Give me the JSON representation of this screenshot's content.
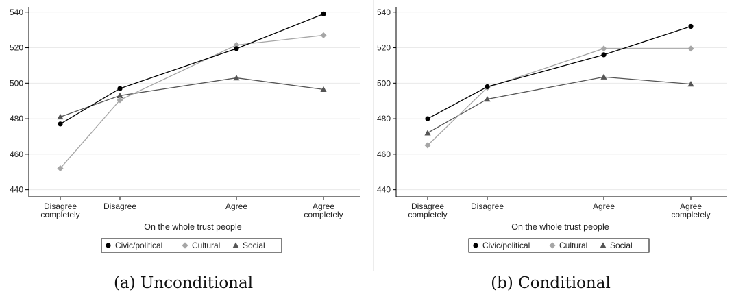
{
  "chart_data": [
    {
      "type": "line",
      "caption": "(a) Unconditional",
      "xlabel": "On the whole trust people",
      "ylabel": "",
      "categories": [
        [
          "Disagree",
          "completely"
        ],
        [
          "Disagree"
        ],
        [
          "Agree"
        ],
        [
          "Agree",
          "completely"
        ]
      ],
      "ylim": [
        436,
        543
      ],
      "yticks": [
        440,
        460,
        480,
        500,
        520,
        540
      ],
      "grid": true,
      "legend_position": "bottom",
      "series": [
        {
          "name": "Civic/political",
          "values": [
            477,
            497,
            519.5,
            539
          ],
          "color": "#000000",
          "marker": "circle"
        },
        {
          "name": "Cultural",
          "values": [
            452,
            490.5,
            521.5,
            527
          ],
          "color": "#a6a6a6",
          "marker": "diamond"
        },
        {
          "name": "Social",
          "values": [
            481,
            493,
            503,
            496.5
          ],
          "color": "#555555",
          "marker": "triangle"
        }
      ]
    },
    {
      "type": "line",
      "caption": "(b) Conditional",
      "xlabel": "On the whole trust people",
      "ylabel": "",
      "categories": [
        [
          "Disagree",
          "completely"
        ],
        [
          "Disagree"
        ],
        [
          "Agree"
        ],
        [
          "Agree",
          "completely"
        ]
      ],
      "ylim": [
        436,
        543
      ],
      "yticks": [
        440,
        460,
        480,
        500,
        520,
        540
      ],
      "grid": true,
      "legend_position": "bottom",
      "series": [
        {
          "name": "Civic/political",
          "values": [
            480,
            498,
            516,
            532
          ],
          "color": "#000000",
          "marker": "circle"
        },
        {
          "name": "Cultural",
          "values": [
            465,
            497.5,
            519.5,
            519.5
          ],
          "color": "#a6a6a6",
          "marker": "diamond"
        },
        {
          "name": "Social",
          "values": [
            472,
            491,
            503.5,
            499.5
          ],
          "color": "#555555",
          "marker": "triangle"
        }
      ]
    }
  ]
}
